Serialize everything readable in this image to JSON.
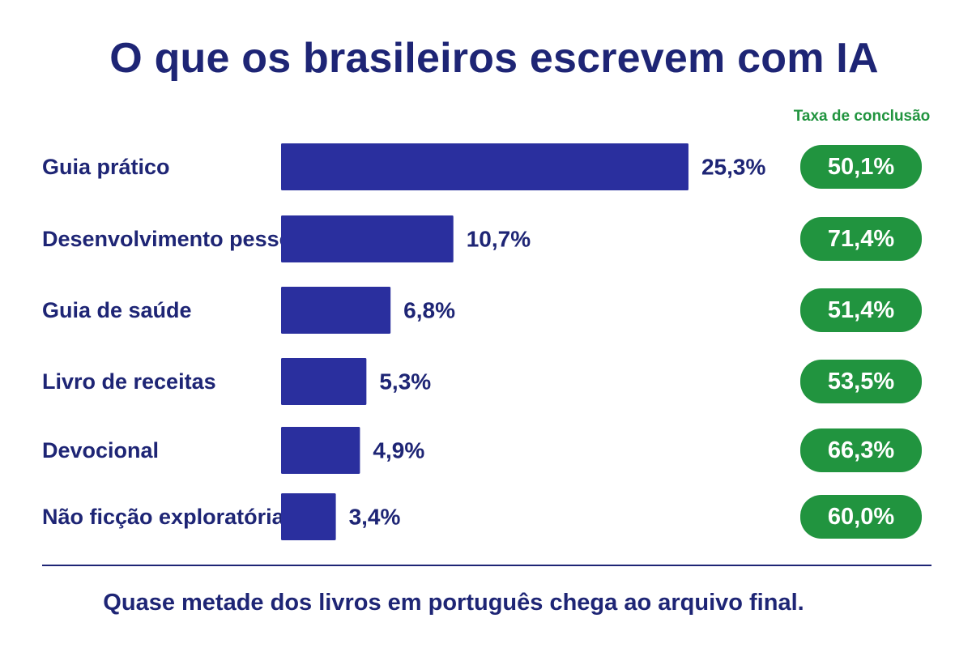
{
  "chart_data": {
    "type": "bar",
    "orientation": "horizontal",
    "title": "O que os brasileiros escrevem com IA",
    "categories": [
      "Guia prático",
      "Desenvolvimento pessoal",
      "Guia de saúde",
      "Livro de receitas",
      "Devocional",
      "Não ficção exploratória"
    ],
    "values": [
      25.3,
      10.7,
      6.8,
      5.3,
      4.9,
      3.4
    ],
    "value_labels": [
      "25,3%",
      "10,7%",
      "6,8%",
      "5,3%",
      "4,9%",
      "3,4%"
    ],
    "completion_rate_header": "Taxa de conclusão",
    "completion_rates": [
      50.1,
      71.4,
      51.4,
      53.5,
      66.3,
      60.0
    ],
    "completion_rate_labels": [
      "50,1%",
      "71,4%",
      "51,4%",
      "53,5%",
      "66,3%",
      "60,0%"
    ],
    "xlabel": "",
    "ylabel": "",
    "grid": false,
    "legend": "none"
  },
  "footer": "Quase metade dos livros em português chega  ao arquivo final.",
  "colors": {
    "bar": "#2a2f9e",
    "text": "#1e2575",
    "pill": "#21943f",
    "pill_text": "#ffffff"
  }
}
